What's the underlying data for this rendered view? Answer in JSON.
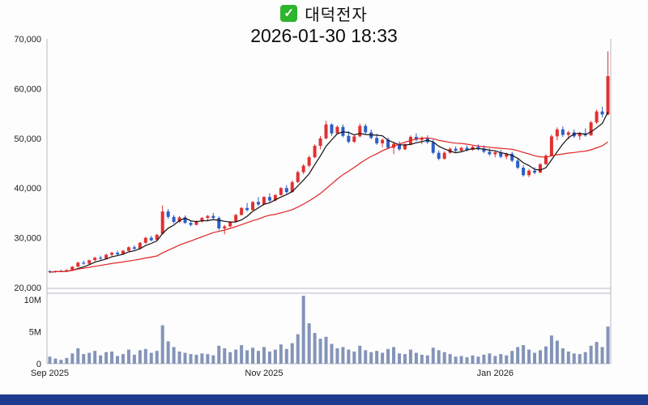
{
  "header": {
    "check_glyph": "✓",
    "check_color": "#2db52d",
    "title": "대덕전자",
    "datetime": "2026-01-30 18:33"
  },
  "footer": {
    "bar_color": "#1d3c8f"
  },
  "chart_data": {
    "type": "candlestick",
    "title": "대덕전자",
    "timestamp": "2026-01-30 18:33",
    "columns": [
      "open",
      "high",
      "low",
      "close",
      "volume_millions"
    ],
    "price_axis": {
      "min": 20000,
      "max": 70000,
      "tick_step": 10000,
      "tick_labels": [
        "70,000",
        "60,000",
        "50,000",
        "40,000",
        "30,000",
        "20,000"
      ]
    },
    "volume_axis": {
      "max_millions": 11,
      "tick_labels": [
        "10M",
        "5M",
        "0"
      ],
      "tick_values_millions": [
        10,
        5,
        0
      ]
    },
    "x_axis": {
      "tick_labels": [
        "Sep 2025",
        "Nov 2025",
        "Jan 2026"
      ],
      "tick_indices": [
        0,
        38,
        79
      ]
    },
    "colors": {
      "up": "#e03131",
      "down": "#2b5fc7",
      "volume": "#8494b8",
      "frame": "#b9b9c4",
      "tick_text": "#222222"
    },
    "moving_averages": [
      {
        "name": "short",
        "window": 5,
        "color": "#111111"
      },
      {
        "name": "long",
        "window": 20,
        "color": "#e02424"
      }
    ],
    "candles": [
      [
        23300,
        23500,
        22900,
        23100,
        1.1
      ],
      [
        23100,
        23400,
        23000,
        23300,
        0.8
      ],
      [
        23300,
        23600,
        23100,
        23200,
        0.6
      ],
      [
        23200,
        23700,
        23100,
        23500,
        0.9
      ],
      [
        23500,
        24300,
        23300,
        24200,
        1.6
      ],
      [
        24200,
        25200,
        24100,
        25000,
        2.4
      ],
      [
        25000,
        25400,
        24600,
        24800,
        1.5
      ],
      [
        24800,
        25600,
        24700,
        25500,
        1.7
      ],
      [
        25500,
        26200,
        25300,
        26000,
        2.0
      ],
      [
        26000,
        26400,
        25600,
        25800,
        1.3
      ],
      [
        25800,
        26800,
        25700,
        26600,
        1.8
      ],
      [
        26600,
        27200,
        26300,
        27000,
        1.9
      ],
      [
        27000,
        27400,
        26500,
        26700,
        1.2
      ],
      [
        26700,
        27600,
        26600,
        27400,
        1.5
      ],
      [
        27400,
        28300,
        27300,
        28100,
        2.2
      ],
      [
        28100,
        28500,
        27600,
        27800,
        1.4
      ],
      [
        27800,
        29200,
        27700,
        29000,
        2.1
      ],
      [
        29000,
        30200,
        28800,
        30000,
        2.3
      ],
      [
        30000,
        30400,
        29300,
        29500,
        1.7
      ],
      [
        29600,
        30800,
        29500,
        30600,
        2.0
      ],
      [
        30800,
        36500,
        30700,
        35300,
        6.0
      ],
      [
        35300,
        35800,
        33800,
        34200,
        3.5
      ],
      [
        34200,
        34600,
        32900,
        33200,
        2.6
      ],
      [
        33200,
        34400,
        33000,
        34100,
        1.9
      ],
      [
        34100,
        34500,
        32800,
        33000,
        1.7
      ],
      [
        33000,
        33400,
        32300,
        32600,
        1.5
      ],
      [
        32600,
        33500,
        32500,
        33300,
        1.4
      ],
      [
        33300,
        34200,
        33100,
        34000,
        1.6
      ],
      [
        34000,
        34600,
        33300,
        34400,
        1.5
      ],
      [
        34400,
        35000,
        33700,
        34000,
        1.3
      ],
      [
        34000,
        34300,
        31500,
        31900,
        2.8
      ],
      [
        31900,
        32600,
        30700,
        32300,
        2.4
      ],
      [
        32300,
        33400,
        32100,
        33200,
        1.8
      ],
      [
        33200,
        34800,
        33100,
        34600,
        2.2
      ],
      [
        34600,
        36200,
        34500,
        36000,
        2.9
      ],
      [
        36000,
        37000,
        35300,
        35600,
        2.1
      ],
      [
        35600,
        37400,
        35500,
        37200,
        2.5
      ],
      [
        37200,
        38200,
        36400,
        36700,
        2.0
      ],
      [
        36700,
        38400,
        36600,
        38200,
        2.6
      ],
      [
        38200,
        39000,
        37200,
        37500,
        1.9
      ],
      [
        37500,
        38800,
        37300,
        38600,
        2.2
      ],
      [
        38600,
        40200,
        38500,
        40000,
        3.0
      ],
      [
        40000,
        40600,
        38900,
        39200,
        2.3
      ],
      [
        39200,
        41500,
        39100,
        41200,
        3.2
      ],
      [
        41200,
        43500,
        41000,
        43200,
        4.6
      ],
      [
        43200,
        44800,
        42800,
        44500,
        10.6
      ],
      [
        44500,
        46500,
        44200,
        46200,
        6.3
      ],
      [
        46200,
        48800,
        46000,
        48500,
        4.8
      ],
      [
        48500,
        50500,
        47800,
        50000,
        3.9
      ],
      [
        50000,
        53500,
        49800,
        52800,
        4.2
      ],
      [
        52800,
        53000,
        50500,
        51000,
        3.1
      ],
      [
        51000,
        52600,
        50800,
        52300,
        2.4
      ],
      [
        52300,
        52800,
        50200,
        50500,
        2.6
      ],
      [
        50500,
        51500,
        49000,
        49300,
        2.2
      ],
      [
        49300,
        50800,
        49100,
        50400,
        1.9
      ],
      [
        50400,
        53000,
        50200,
        52500,
        2.8
      ],
      [
        52500,
        52900,
        50900,
        51200,
        2.1
      ],
      [
        51200,
        51800,
        49800,
        50100,
        1.8
      ],
      [
        50100,
        50900,
        48700,
        49000,
        2.0
      ],
      [
        49000,
        50000,
        48200,
        49700,
        1.7
      ],
      [
        49700,
        50200,
        47800,
        48100,
        2.3
      ],
      [
        48100,
        49300,
        46800,
        48900,
        2.6
      ],
      [
        48900,
        49400,
        47500,
        47800,
        1.6
      ],
      [
        47800,
        49000,
        47600,
        48800,
        1.5
      ],
      [
        48800,
        50600,
        48600,
        50300,
        2.2
      ],
      [
        50300,
        51000,
        49400,
        49700,
        1.7
      ],
      [
        49700,
        50400,
        48800,
        50100,
        1.4
      ],
      [
        50100,
        50600,
        48900,
        49200,
        1.3
      ],
      [
        49200,
        49800,
        46800,
        47100,
        2.5
      ],
      [
        47100,
        47600,
        45600,
        45900,
        2.1
      ],
      [
        45900,
        47400,
        45700,
        47100,
        1.8
      ],
      [
        47100,
        48200,
        46900,
        47900,
        1.5
      ],
      [
        47900,
        48400,
        47200,
        47500,
        1.1
      ],
      [
        47500,
        48300,
        47300,
        48100,
        1.2
      ],
      [
        48100,
        48600,
        47400,
        47700,
        1.0
      ],
      [
        47700,
        48500,
        47500,
        48300,
        1.3
      ],
      [
        48300,
        48800,
        47600,
        47900,
        1.1
      ],
      [
        47900,
        48600,
        47000,
        47300,
        1.4
      ],
      [
        47300,
        48000,
        46500,
        46800,
        1.6
      ],
      [
        46800,
        47500,
        46200,
        47200,
        1.2
      ],
      [
        47200,
        47700,
        46000,
        46300,
        1.5
      ],
      [
        46300,
        47100,
        45800,
        46900,
        1.3
      ],
      [
        46900,
        47300,
        45200,
        45500,
        2.0
      ],
      [
        45500,
        46000,
        43800,
        44100,
        2.6
      ],
      [
        44100,
        44600,
        42300,
        42600,
        2.9
      ],
      [
        42600,
        43800,
        42200,
        43500,
        2.2
      ],
      [
        43500,
        44200,
        42800,
        43100,
        1.7
      ],
      [
        43100,
        45000,
        43000,
        44800,
        2.1
      ],
      [
        44800,
        46800,
        44700,
        46500,
        2.7
      ],
      [
        46500,
        50800,
        46400,
        50400,
        4.4
      ],
      [
        50400,
        52200,
        49600,
        51800,
        3.6
      ],
      [
        51800,
        52400,
        50300,
        50700,
        2.4
      ],
      [
        50700,
        51500,
        49800,
        51200,
        1.9
      ],
      [
        51200,
        51800,
        50100,
        50400,
        1.6
      ],
      [
        50400,
        51300,
        49700,
        51000,
        1.5
      ],
      [
        51000,
        52000,
        50300,
        50600,
        1.8
      ],
      [
        50600,
        53500,
        50500,
        53200,
        2.8
      ],
      [
        53200,
        55800,
        52900,
        55400,
        3.4
      ],
      [
        55400,
        56400,
        54200,
        54800,
        2.6
      ],
      [
        54800,
        67500,
        54600,
        62500,
        5.8
      ]
    ]
  }
}
